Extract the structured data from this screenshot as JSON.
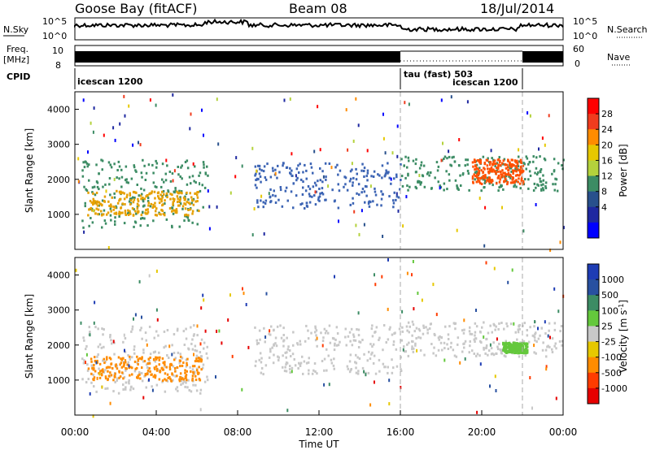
{
  "header": {
    "title": "Goose Bay (fitACF)",
    "beam": "Beam 08",
    "date": "18/Jul/2014"
  },
  "top_strip": {
    "nsky_label": "N.Sky",
    "nsky_ticks": [
      "10^5",
      "10^0"
    ],
    "nsearch_label": "N.Search",
    "nsearch_ticks": [
      "10^5",
      "10^0"
    ],
    "freq_label_1": "Freq.",
    "freq_label_2": "[MHz]",
    "freq_ticks": [
      "10",
      "8"
    ],
    "nave_label": "Nave",
    "nave_ticks": [
      "60",
      "0"
    ],
    "cpid_label": "CPID",
    "cpid_segments": [
      {
        "label": "icescan 1200",
        "start_h": 0,
        "end_h": 16
      },
      {
        "label": "tau (fast) 503",
        "start_h": 16,
        "end_h": 22
      },
      {
        "label": "icescan 1200",
        "start_h": 16,
        "end_h": 22
      }
    ]
  },
  "chart_data": [
    {
      "type": "heatmap",
      "name": "power",
      "ylabel": "Slant Range [km]",
      "yticks": [
        "1000",
        "2000",
        "3000",
        "4000"
      ],
      "ylim": [
        0,
        4500
      ],
      "xlim": [
        0,
        24
      ],
      "colorbar_label": "Power [dB]",
      "colorbar_ticks": [
        "28",
        "24",
        "20",
        "16",
        "12",
        "8",
        "4"
      ],
      "colorbar_colors": [
        "#ff0000",
        "#f03c1e",
        "#ff8c00",
        "#e6c800",
        "#b4d23c",
        "#3c8c64",
        "#28508c",
        "#1e28a0",
        "#0000ff"
      ],
      "regions": [
        {
          "t0": 0.3,
          "t1": 6.5,
          "r0": 650,
          "r1": 2600,
          "color": "#3c8c64"
        },
        {
          "t0": 0.6,
          "t1": 6.2,
          "r0": 1000,
          "r1": 1700,
          "color": "#e6a000"
        },
        {
          "t0": 8.8,
          "t1": 16,
          "r0": 1200,
          "r1": 2500,
          "color": "#3c64b4"
        },
        {
          "t0": 16,
          "t1": 24,
          "r0": 1700,
          "r1": 2700,
          "color": "#3c8c64"
        },
        {
          "t0": 19.5,
          "t1": 22,
          "r0": 1900,
          "r1": 2600,
          "color": "#ff5000"
        }
      ]
    },
    {
      "type": "heatmap",
      "name": "velocity",
      "ylabel": "Slant Range [km]",
      "yticks": [
        "1000",
        "2000",
        "3000",
        "4000"
      ],
      "ylim": [
        0,
        4500
      ],
      "xlim": [
        0,
        24
      ],
      "xlabel": "Time UT",
      "xticks": [
        "00:00",
        "04:00",
        "08:00",
        "12:00",
        "16:00",
        "20:00",
        "00:00"
      ],
      "colorbar_label": "Velocity [m s",
      "colorbar_label_sup": "-1",
      "colorbar_label_end": "]",
      "colorbar_ticks": [
        "1000",
        "500",
        "100",
        "25",
        "-25",
        "-100",
        "-500",
        "-1000"
      ],
      "colorbar_colors": [
        "#1e3cb4",
        "#2850a0",
        "#3c8c64",
        "#64c83c",
        "#c8c8c8",
        "#e6c800",
        "#ff8c00",
        "#ff3c00",
        "#e60000"
      ],
      "regions": [
        {
          "t0": 0.3,
          "t1": 6.5,
          "r0": 650,
          "r1": 2600,
          "color": "#c8c8c8"
        },
        {
          "t0": 0.6,
          "t1": 6.2,
          "r0": 1000,
          "r1": 1700,
          "color": "#ff8c00"
        },
        {
          "t0": 8.8,
          "t1": 16,
          "r0": 1200,
          "r1": 2600,
          "color": "#c8c8c8"
        },
        {
          "t0": 16,
          "t1": 24,
          "r0": 1700,
          "r1": 2700,
          "color": "#c8c8c8"
        },
        {
          "t0": 21,
          "t1": 22.2,
          "r0": 1800,
          "r1": 2100,
          "color": "#64c83c"
        }
      ]
    }
  ]
}
